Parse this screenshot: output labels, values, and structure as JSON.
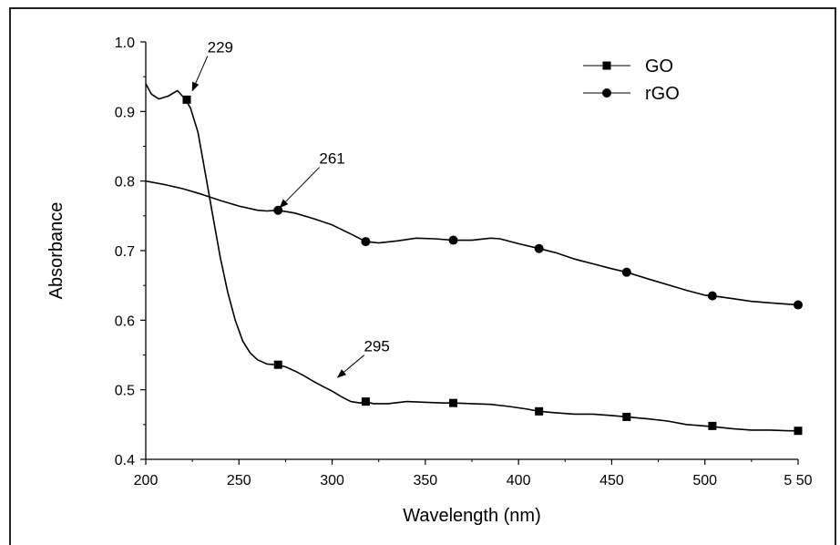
{
  "chart_data": {
    "type": "line",
    "xlabel": "Wavelength (nm)",
    "ylabel": "Absorbance",
    "xlim": [
      200,
      550
    ],
    "ylim": [
      0.4,
      1.0
    ],
    "x_ticks": [
      200,
      250,
      300,
      350,
      400,
      450,
      500,
      550
    ],
    "x_tick_labels": [
      "200",
      "250",
      "300",
      "350",
      "400",
      "450",
      "500",
      "5 50"
    ],
    "y_ticks": [
      0.4,
      0.5,
      0.6,
      0.7,
      0.8,
      0.9,
      1.0
    ],
    "y_tick_labels": [
      "0.4",
      "0.5",
      "0.6",
      "0.7",
      "0.8",
      "0.9",
      "1.0"
    ],
    "legend_position": "top-right",
    "series": [
      {
        "name": "GO",
        "marker": "square",
        "color": "#000000",
        "x": [
          200,
          203,
          207,
          212,
          217,
          221,
          224,
          228,
          232,
          236,
          240,
          244,
          248,
          252,
          256,
          260,
          265,
          270,
          275,
          280,
          285,
          290,
          295,
          300,
          305,
          310,
          315,
          318,
          322,
          330,
          340,
          350,
          360,
          365,
          375,
          385,
          395,
          405,
          411,
          420,
          430,
          440,
          450,
          458,
          470,
          480,
          490,
          500,
          504,
          515,
          525,
          535,
          545,
          550
        ],
        "y": [
          0.94,
          0.925,
          0.918,
          0.922,
          0.93,
          0.918,
          0.905,
          0.87,
          0.81,
          0.75,
          0.69,
          0.64,
          0.6,
          0.57,
          0.553,
          0.543,
          0.537,
          0.536,
          0.533,
          0.527,
          0.52,
          0.512,
          0.505,
          0.498,
          0.49,
          0.483,
          0.481,
          0.483,
          0.48,
          0.48,
          0.483,
          0.482,
          0.481,
          0.481,
          0.48,
          0.479,
          0.476,
          0.472,
          0.469,
          0.467,
          0.465,
          0.465,
          0.463,
          0.461,
          0.458,
          0.455,
          0.45,
          0.448,
          0.447,
          0.444,
          0.442,
          0.442,
          0.441,
          0.441
        ],
        "marker_x": [
          222,
          271,
          318,
          365,
          411,
          458,
          504,
          550
        ],
        "marker_y": [
          0.917,
          0.536,
          0.483,
          0.481,
          0.469,
          0.461,
          0.448,
          0.441
        ]
      },
      {
        "name": "rGO",
        "marker": "circle",
        "color": "#000000",
        "x": [
          200,
          210,
          220,
          230,
          240,
          250,
          260,
          265,
          271,
          280,
          290,
          300,
          310,
          318,
          325,
          335,
          345,
          355,
          365,
          375,
          385,
          390,
          400,
          411,
          420,
          430,
          440,
          450,
          458,
          470,
          480,
          490,
          500,
          504,
          515,
          525,
          535,
          545,
          550
        ],
        "y": [
          0.8,
          0.795,
          0.789,
          0.781,
          0.772,
          0.764,
          0.758,
          0.757,
          0.758,
          0.754,
          0.746,
          0.737,
          0.724,
          0.713,
          0.711,
          0.714,
          0.718,
          0.717,
          0.715,
          0.715,
          0.718,
          0.717,
          0.71,
          0.703,
          0.697,
          0.688,
          0.681,
          0.674,
          0.669,
          0.659,
          0.651,
          0.643,
          0.636,
          0.635,
          0.631,
          0.627,
          0.625,
          0.623,
          0.622
        ],
        "marker_x": [
          271,
          318,
          365,
          411,
          458,
          504,
          550
        ],
        "marker_y": [
          0.758,
          0.713,
          0.715,
          0.703,
          0.669,
          0.635,
          0.622
        ]
      }
    ],
    "annotations": [
      {
        "text": "229",
        "x": 240,
        "y": 0.985,
        "arrow_to": [
          225,
          0.93
        ]
      },
      {
        "text": "261",
        "x": 300,
        "y": 0.825,
        "arrow_to": [
          272,
          0.762
        ]
      },
      {
        "text": "295",
        "x": 324,
        "y": 0.555,
        "arrow_to": [
          303,
          0.518
        ]
      }
    ],
    "grid": false
  }
}
